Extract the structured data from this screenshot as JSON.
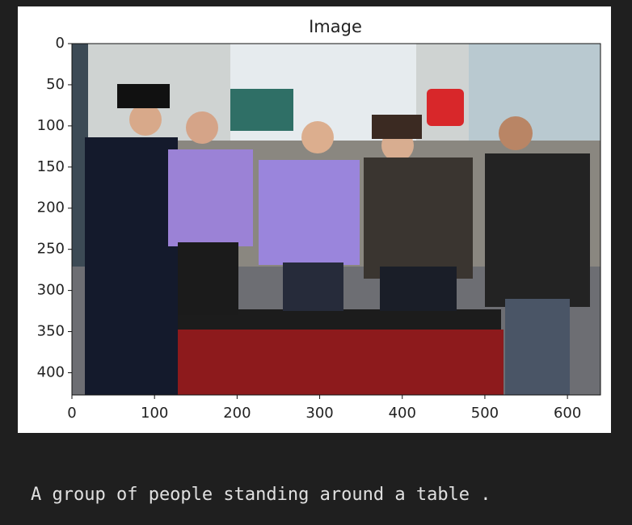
{
  "chart_data": {
    "type": "image",
    "title": "Image",
    "xlim": [
      0,
      640
    ],
    "ylim": [
      427,
      0
    ],
    "xticks": [
      0,
      100,
      200,
      300,
      400,
      500,
      600
    ],
    "yticks": [
      0,
      50,
      100,
      150,
      200,
      250,
      300,
      350,
      400
    ]
  },
  "caption": "A group of people standing around a table ."
}
